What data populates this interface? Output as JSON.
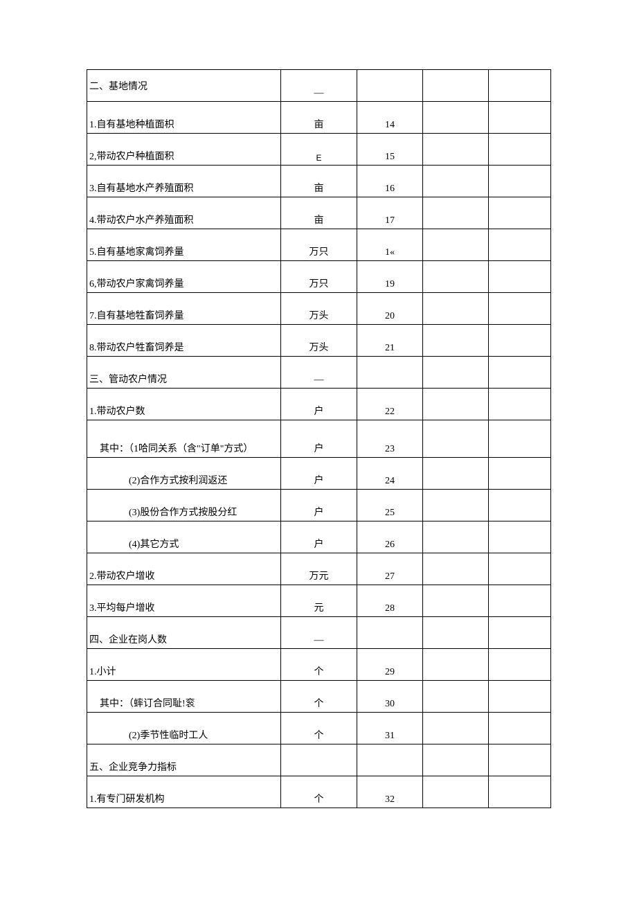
{
  "sections": {
    "base": {
      "title": "二、基地情况",
      "dash": "—",
      "rows": [
        {
          "label": "1.自有基地种植面枳",
          "unit": "亩",
          "code": "14"
        },
        {
          "label": "2,带动农户种植面积",
          "unit": "E",
          "code": "15",
          "unit_class": "e-char"
        },
        {
          "label": "3.自有基地水产养殖面积",
          "unit": "亩",
          "code": "16"
        },
        {
          "label": "4.带动农户水产养殖面积",
          "unit": "亩",
          "code": "17"
        },
        {
          "label": "5.自有基地家禽饲养量",
          "unit": "万只",
          "code": "1«"
        },
        {
          "label": "6,带动农户家禽饲养量",
          "unit": "万只",
          "code": "19"
        },
        {
          "label": "7.自有基地牲畜饲养量",
          "unit": "万头",
          "code": "20"
        },
        {
          "label": "8.带动农户牲畜饲养是",
          "unit": "万头",
          "code": "21"
        }
      ]
    },
    "drive": {
      "title": "三、管动农户情况",
      "dash": "—",
      "rows": [
        {
          "label": "1.带动农户数",
          "unit": "户",
          "code": "22"
        },
        {
          "label": "  其中：（1哈同关系（含\"订单\"方式）",
          "unit": "户",
          "code": "23",
          "indent": "indent-1",
          "tall": true
        },
        {
          "label": "(2)合作方式按利润返还",
          "unit": "户",
          "code": "24",
          "indent": "indent-2"
        },
        {
          "label": "(3)股份合作方式按股分红",
          "unit": "户",
          "code": "25",
          "indent": "indent-2"
        },
        {
          "label": "(4)其它方式",
          "unit": "户",
          "code": "26",
          "indent": "indent-2"
        },
        {
          "label": "2.带动农户增收",
          "unit": "万元",
          "code": "27"
        },
        {
          "label": "3.平均每户增收",
          "unit": "元",
          "code": "28"
        }
      ]
    },
    "staff": {
      "title": "四、企业在岗人数",
      "dash": "—",
      "rows": [
        {
          "label": "1.小计",
          "unit": "个",
          "code": "29"
        },
        {
          "label": "  其中：（蟀订合同耻!衮",
          "unit": "个",
          "code": "30",
          "indent": "indent-1"
        },
        {
          "label": "(2)季节性临时工人",
          "unit": "个",
          "code": "31",
          "indent": "indent-2"
        }
      ]
    },
    "compete": {
      "title": "五、企业竞争力指标",
      "dash": "",
      "rows": [
        {
          "label": "1.有专门研发机构",
          "unit": "个",
          "code": "32"
        }
      ]
    }
  }
}
